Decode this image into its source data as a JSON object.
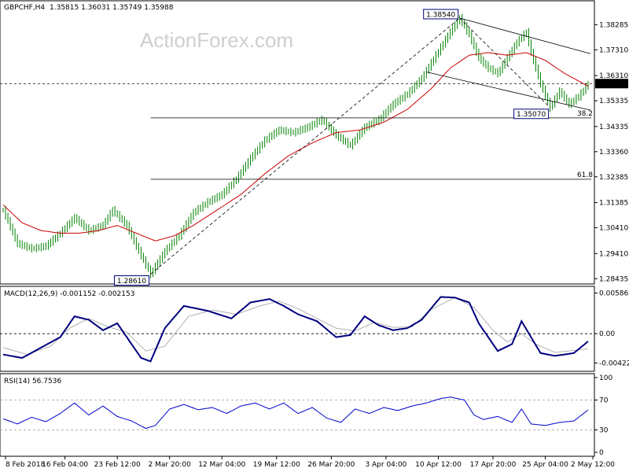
{
  "header": {
    "symbol": "GBPCHF,H4",
    "ohlc": "1.35815 1.36031 1.35749 1.35988"
  },
  "watermark": "ActionForex.com",
  "colors": {
    "candle": "#008000",
    "ma": "#cc0000",
    "macd": "#000080",
    "signal": "#b0b0b0",
    "rsi": "#0000cc",
    "guide": "#000000",
    "bg": "#ffffff"
  },
  "chart_data": {
    "type": "line",
    "main": {
      "ylim": [
        1.2826,
        1.3918
      ],
      "price_ticks": [
        "1.38285",
        "1.37310",
        "1.36310",
        "1.35335",
        "1.34335",
        "1.33360",
        "1.32385",
        "1.31385",
        "1.30410",
        "1.29410",
        "1.28435"
      ],
      "price_tick_values": [
        1.38285,
        1.3731,
        1.3631,
        1.35335,
        1.34335,
        1.3336,
        1.32385,
        1.31385,
        1.3041,
        1.2941,
        1.28435
      ],
      "current_price_label": "1.36000",
      "current_price": 1.36,
      "annotations": [
        {
          "text": "1.38540",
          "value": 1.3854,
          "bar": 192
        },
        {
          "text": "1.35070",
          "value": 1.3507,
          "bar": 230
        },
        {
          "text": "1.28610",
          "value": 1.2861,
          "bar": 62
        }
      ],
      "fib_levels": [
        {
          "label": "38.2",
          "value": 1.3467
        },
        {
          "label": "61.8",
          "value": 1.3229
        }
      ],
      "close_path": [
        [
          0,
          1.311
        ],
        [
          6,
          1.298
        ],
        [
          12,
          1.296
        ],
        [
          18,
          1.297
        ],
        [
          24,
          1.302
        ],
        [
          30,
          1.308
        ],
        [
          36,
          1.303
        ],
        [
          42,
          1.305
        ],
        [
          46,
          1.311
        ],
        [
          52,
          1.305
        ],
        [
          56,
          1.297
        ],
        [
          62,
          1.2861
        ],
        [
          68,
          1.295
        ],
        [
          74,
          1.301
        ],
        [
          80,
          1.31
        ],
        [
          86,
          1.314
        ],
        [
          92,
          1.317
        ],
        [
          98,
          1.323
        ],
        [
          104,
          1.331
        ],
        [
          110,
          1.338
        ],
        [
          116,
          1.342
        ],
        [
          122,
          1.341
        ],
        [
          128,
          1.343
        ],
        [
          134,
          1.346
        ],
        [
          140,
          1.34
        ],
        [
          146,
          1.336
        ],
        [
          152,
          1.343
        ],
        [
          158,
          1.346
        ],
        [
          164,
          1.352
        ],
        [
          170,
          1.356
        ],
        [
          176,
          1.362
        ],
        [
          182,
          1.371
        ],
        [
          188,
          1.38
        ],
        [
          192,
          1.3854
        ],
        [
          196,
          1.379
        ],
        [
          200,
          1.37
        ],
        [
          204,
          1.366
        ],
        [
          208,
          1.364
        ],
        [
          212,
          1.37
        ],
        [
          216,
          1.376
        ],
        [
          220,
          1.38
        ],
        [
          222,
          1.372
        ],
        [
          226,
          1.36
        ],
        [
          230,
          1.3507
        ],
        [
          234,
          1.357
        ],
        [
          238,
          1.352
        ],
        [
          242,
          1.355
        ],
        [
          246,
          1.3599
        ]
      ],
      "ma_path": [
        [
          0,
          1.313
        ],
        [
          8,
          1.306
        ],
        [
          16,
          1.303
        ],
        [
          24,
          1.302
        ],
        [
          32,
          1.302
        ],
        [
          40,
          1.303
        ],
        [
          48,
          1.305
        ],
        [
          56,
          1.302
        ],
        [
          64,
          1.299
        ],
        [
          72,
          1.301
        ],
        [
          80,
          1.305
        ],
        [
          90,
          1.311
        ],
        [
          100,
          1.317
        ],
        [
          110,
          1.325
        ],
        [
          120,
          1.332
        ],
        [
          130,
          1.337
        ],
        [
          140,
          1.341
        ],
        [
          150,
          1.342
        ],
        [
          160,
          1.345
        ],
        [
          170,
          1.35
        ],
        [
          180,
          1.358
        ],
        [
          188,
          1.366
        ],
        [
          196,
          1.371
        ],
        [
          204,
          1.372
        ],
        [
          212,
          1.371
        ],
        [
          220,
          1.372
        ],
        [
          228,
          1.369
        ],
        [
          236,
          1.364
        ],
        [
          246,
          1.359
        ]
      ],
      "bars": 247
    },
    "macd": {
      "label": "MACD(12,26,9) -0.001152 -0.002153",
      "ylim": [
        -0.0052,
        0.0066
      ],
      "ticks": [
        "0.005862",
        "0.00",
        "-0.004225"
      ],
      "tick_values": [
        0.005862,
        0,
        -0.004225
      ],
      "zero_label": "0.00",
      "macd_path": [
        [
          0,
          -0.003
        ],
        [
          8,
          -0.0035
        ],
        [
          16,
          -0.002
        ],
        [
          24,
          -0.0005
        ],
        [
          30,
          0.0025
        ],
        [
          36,
          0.002
        ],
        [
          42,
          0.0005
        ],
        [
          48,
          0.0015
        ],
        [
          52,
          -0.0005
        ],
        [
          58,
          -0.0035
        ],
        [
          62,
          -0.004
        ],
        [
          68,
          0.0008
        ],
        [
          76,
          0.004
        ],
        [
          86,
          0.0033
        ],
        [
          96,
          0.0022
        ],
        [
          104,
          0.0045
        ],
        [
          112,
          0.005
        ],
        [
          118,
          0.004
        ],
        [
          124,
          0.0028
        ],
        [
          132,
          0.0018
        ],
        [
          140,
          -0.0005
        ],
        [
          146,
          -0.0002
        ],
        [
          152,
          0.0025
        ],
        [
          158,
          0.0012
        ],
        [
          164,
          0.0005
        ],
        [
          170,
          0.0008
        ],
        [
          176,
          0.002
        ],
        [
          184,
          0.0053
        ],
        [
          190,
          0.0052
        ],
        [
          196,
          0.0045
        ],
        [
          200,
          0.0015
        ],
        [
          204,
          -0.0005
        ],
        [
          208,
          -0.0025
        ],
        [
          214,
          -0.0015
        ],
        [
          218,
          0.0018
        ],
        [
          222,
          -0.0005
        ],
        [
          226,
          -0.0028
        ],
        [
          232,
          -0.0032
        ],
        [
          240,
          -0.0028
        ],
        [
          246,
          -0.0011
        ]
      ],
      "signal_path": [
        [
          0,
          -0.002
        ],
        [
          10,
          -0.003
        ],
        [
          20,
          -0.0018
        ],
        [
          28,
          0.0008
        ],
        [
          36,
          0.0022
        ],
        [
          44,
          0.001
        ],
        [
          52,
          0.0002
        ],
        [
          60,
          -0.0025
        ],
        [
          68,
          -0.0018
        ],
        [
          78,
          0.0025
        ],
        [
          88,
          0.0034
        ],
        [
          98,
          0.0028
        ],
        [
          108,
          0.004
        ],
        [
          116,
          0.0047
        ],
        [
          124,
          0.0036
        ],
        [
          132,
          0.0022
        ],
        [
          140,
          0.0008
        ],
        [
          148,
          0.0004
        ],
        [
          156,
          0.0016
        ],
        [
          164,
          0.0009
        ],
        [
          172,
          0.001
        ],
        [
          180,
          0.0035
        ],
        [
          190,
          0.0052
        ],
        [
          198,
          0.0038
        ],
        [
          206,
          0.0005
        ],
        [
          212,
          -0.0012
        ],
        [
          218,
          0.0
        ],
        [
          224,
          -0.0015
        ],
        [
          232,
          -0.0027
        ],
        [
          246,
          -0.0022
        ]
      ]
    },
    "rsi": {
      "label": "RSI(14) 56.7536",
      "ylim": [
        0,
        100
      ],
      "ticks": [
        "100",
        "70",
        "30",
        "0"
      ],
      "tick_values": [
        100,
        70,
        30,
        0
      ],
      "rsi_path": [
        [
          0,
          45
        ],
        [
          6,
          38
        ],
        [
          12,
          47
        ],
        [
          18,
          41
        ],
        [
          24,
          52
        ],
        [
          30,
          66
        ],
        [
          36,
          50
        ],
        [
          42,
          62
        ],
        [
          48,
          48
        ],
        [
          54,
          42
        ],
        [
          60,
          32
        ],
        [
          64,
          36
        ],
        [
          70,
          58
        ],
        [
          76,
          64
        ],
        [
          82,
          57
        ],
        [
          88,
          60
        ],
        [
          94,
          52
        ],
        [
          100,
          62
        ],
        [
          106,
          66
        ],
        [
          112,
          58
        ],
        [
          118,
          66
        ],
        [
          124,
          52
        ],
        [
          130,
          60
        ],
        [
          136,
          46
        ],
        [
          142,
          40
        ],
        [
          148,
          58
        ],
        [
          154,
          52
        ],
        [
          160,
          60
        ],
        [
          166,
          56
        ],
        [
          172,
          62
        ],
        [
          178,
          66
        ],
        [
          184,
          72
        ],
        [
          188,
          74
        ],
        [
          194,
          70
        ],
        [
          198,
          50
        ],
        [
          202,
          44
        ],
        [
          208,
          48
        ],
        [
          214,
          40
        ],
        [
          218,
          58
        ],
        [
          222,
          38
        ],
        [
          228,
          36
        ],
        [
          234,
          40
        ],
        [
          240,
          42
        ],
        [
          246,
          56.75
        ]
      ]
    },
    "x_labels": [
      "8 Feb 2018",
      "16 Feb 04:00",
      "23 Feb 12:00",
      "2 Mar 20:00",
      "12 Mar 04:00",
      "19 Mar 12:00",
      "26 Mar 20:00",
      "3 Apr 04:00",
      "10 Apr 12:00",
      "17 Apr 20:00",
      "25 Apr 04:00",
      "2 May 12:00"
    ],
    "x_label_bars": [
      1,
      26,
      48,
      70,
      92,
      115,
      138,
      161,
      183,
      206,
      228,
      248
    ]
  }
}
